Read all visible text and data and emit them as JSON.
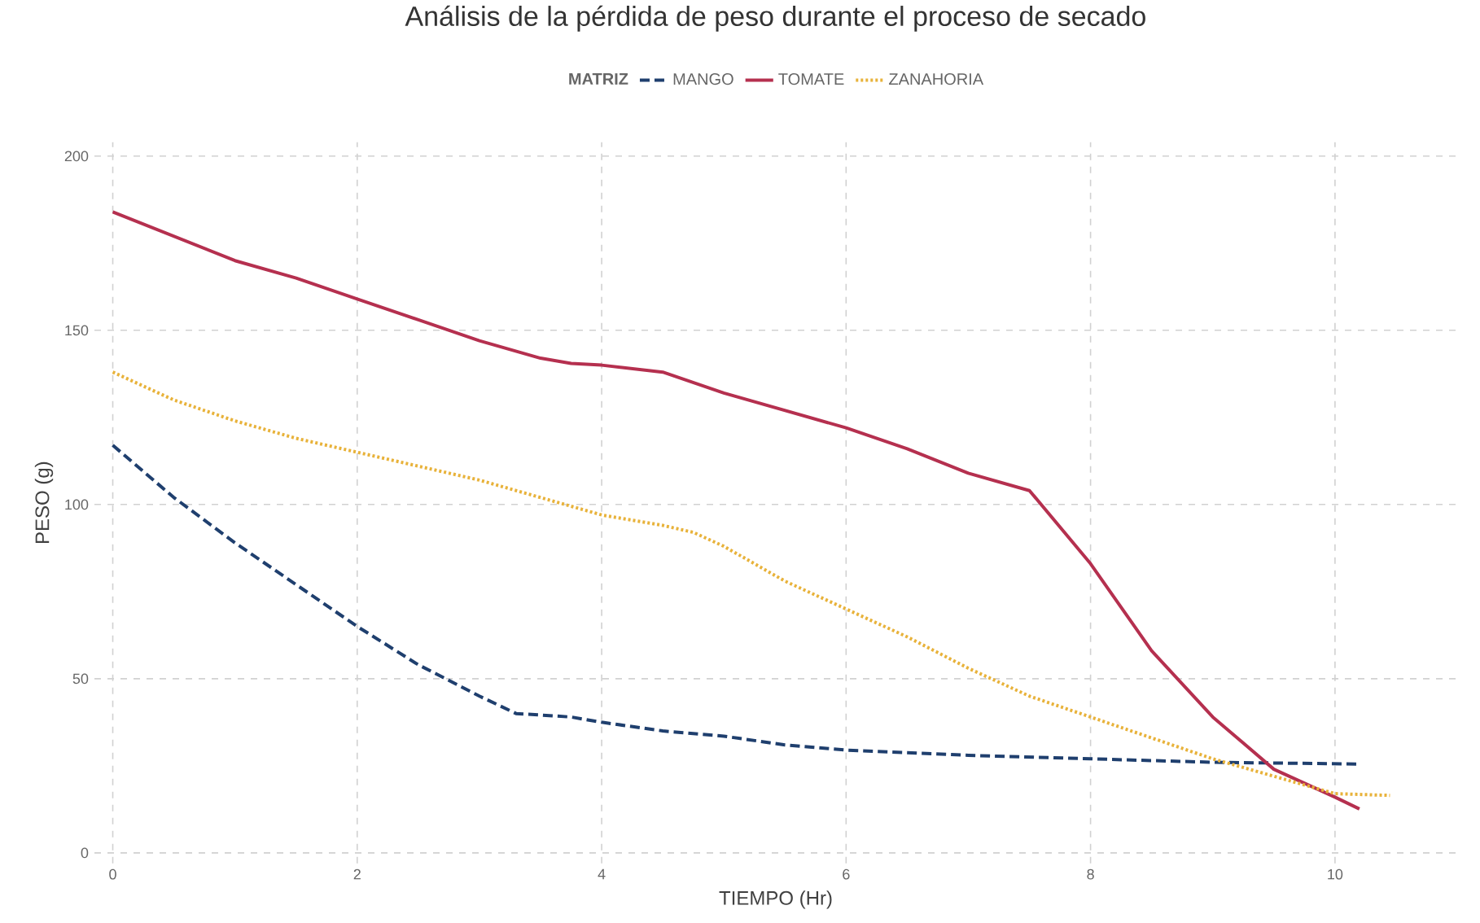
{
  "chart_data": {
    "type": "line",
    "title": "Análisis de la pérdida de peso durante el proceso de secado",
    "xlabel": "TIEMPO (Hr)",
    "ylabel": "PESO (g)",
    "legend_title": "MATRIZ",
    "legend": "top",
    "grid": true,
    "xlim": [
      -0.15,
      11
    ],
    "ylim": [
      -3,
      204
    ],
    "xticks": [
      0,
      2,
      4,
      6,
      8,
      10
    ],
    "yticks": [
      0,
      50,
      100,
      150,
      200
    ],
    "series": [
      {
        "name": "MANGO",
        "color": "#1f3f6e",
        "line_style": "dashed",
        "x": [
          0,
          0.5,
          1,
          1.5,
          2,
          2.5,
          3,
          3.3,
          3.75,
          4,
          4.5,
          5,
          5.5,
          6,
          7,
          8,
          9,
          10.2
        ],
        "values": [
          117,
          102,
          89,
          77,
          65,
          54,
          45,
          40,
          39,
          37.5,
          35,
          33.5,
          31,
          29.5,
          28,
          27,
          26,
          25.5
        ]
      },
      {
        "name": "TOMATE",
        "color": "#b5304f",
        "line_style": "solid",
        "x": [
          0,
          0.5,
          1,
          1.5,
          2,
          2.5,
          3,
          3.5,
          3.75,
          4,
          4.5,
          5,
          5.5,
          6,
          6.5,
          7,
          7.5,
          8,
          8.5,
          9,
          9.5,
          10,
          10.2
        ],
        "values": [
          184,
          177,
          170,
          165,
          159,
          153,
          147,
          142,
          140.5,
          140,
          138,
          132,
          127,
          122,
          116,
          109,
          104,
          83,
          58,
          39,
          24,
          16,
          12.6
        ]
      },
      {
        "name": "ZANAHORIA",
        "color": "#e8b23a",
        "line_style": "dotted",
        "x": [
          0,
          0.5,
          1,
          1.5,
          2,
          2.5,
          3,
          3.5,
          4,
          4.5,
          4.75,
          5,
          5.5,
          6,
          6.5,
          7,
          7.5,
          8,
          8.5,
          9,
          9.5,
          10,
          10.45
        ],
        "values": [
          138,
          130,
          124,
          119,
          115,
          111,
          107,
          102,
          97,
          94,
          92,
          88,
          78,
          70,
          62,
          53,
          45,
          39,
          33,
          27,
          22,
          17,
          16.5
        ]
      }
    ]
  }
}
